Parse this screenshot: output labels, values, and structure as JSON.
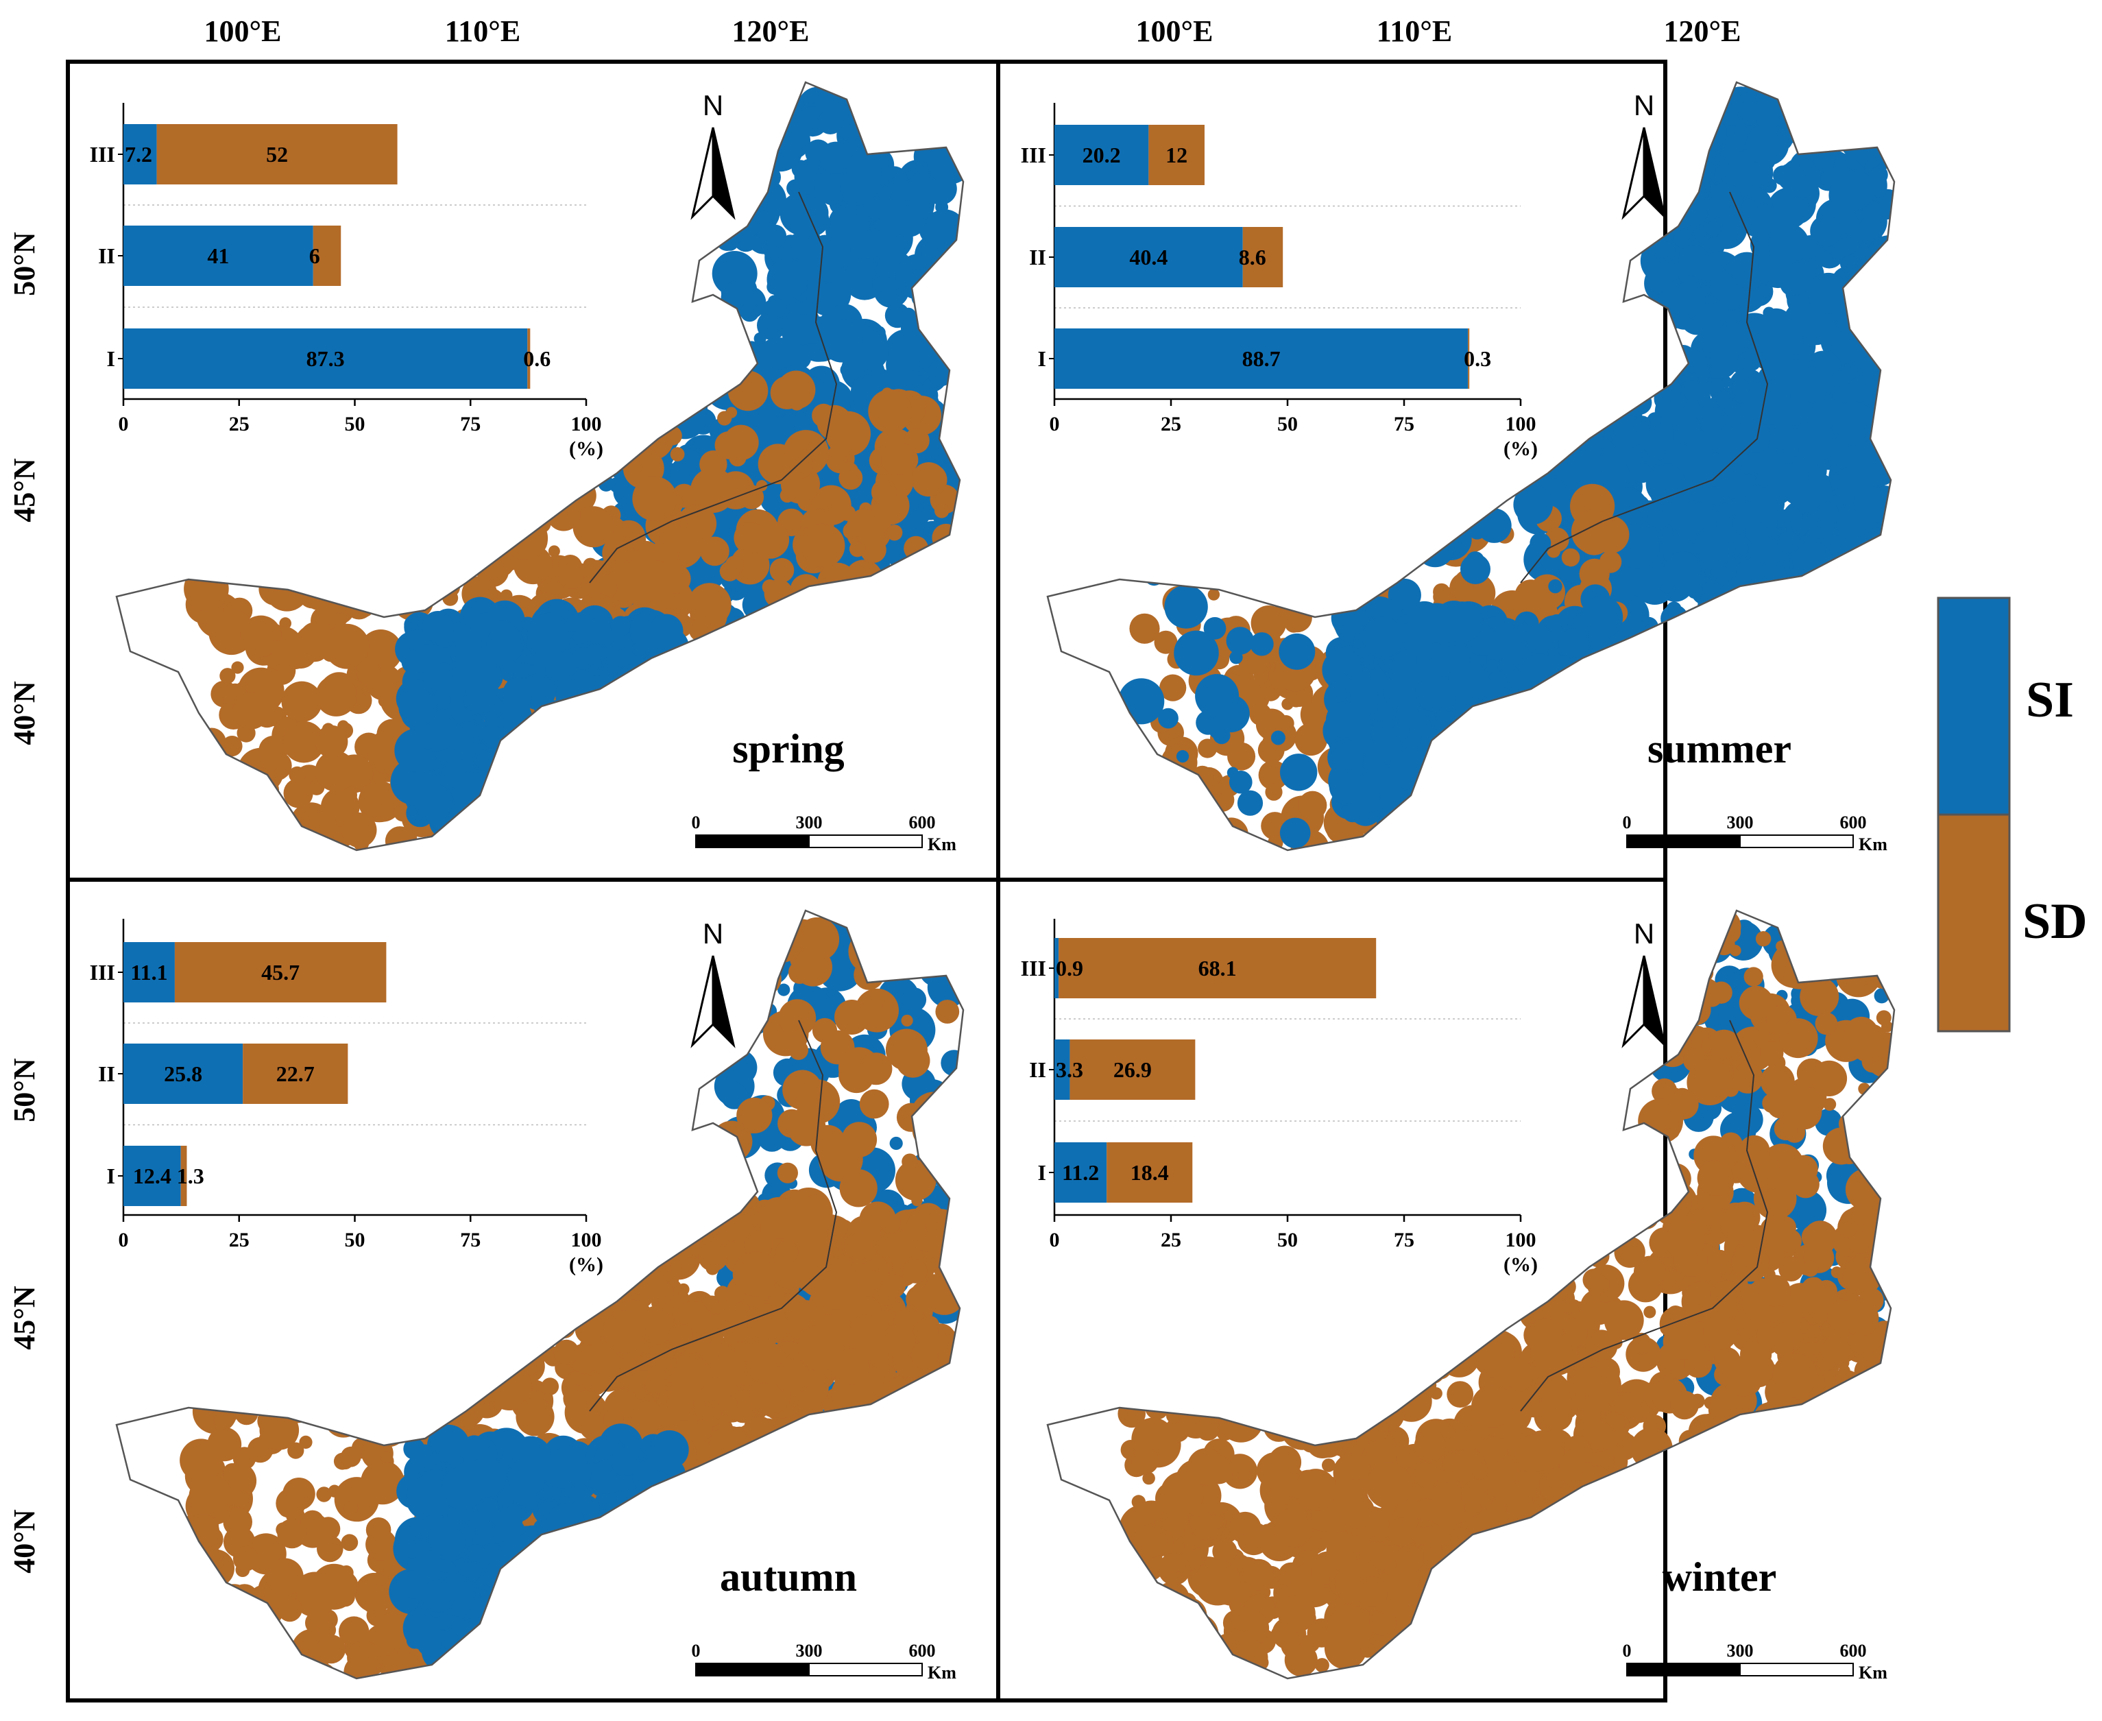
{
  "colors": {
    "SI": "#0f6fb3",
    "SD": "#b36b28",
    "boundary": "#555555",
    "frame": "#000000",
    "grid": "#bbbbbb"
  },
  "longitude_labels": [
    "100°E",
    "110°E",
    "120°E"
  ],
  "latitude_labels": [
    "50°N",
    "45°N",
    "40°N"
  ],
  "legend": {
    "placement": "right",
    "items": [
      {
        "key": "SI",
        "label": "SI",
        "color": "#0f6fb3"
      },
      {
        "key": "SD",
        "label": "SD",
        "color": "#b36b28"
      }
    ]
  },
  "panels": [
    {
      "key": "spring",
      "label": "spring",
      "distribution": "SI dominant in north-east and south; SD in west-central belt"
    },
    {
      "key": "summer",
      "label": "summer",
      "distribution": "SI dominant across most of region; SD patches in west"
    },
    {
      "key": "autumn",
      "label": "autumn",
      "distribution": "SD dominant in central belt; SI in south-east and south"
    },
    {
      "key": "winter",
      "label": "winter",
      "distribution": "SD dominant in west and central; sparse SI in north-east"
    }
  ],
  "north_arrow": "N",
  "scale_bar": {
    "ticks": [
      "0",
      "300",
      "600"
    ],
    "unit": "Km"
  },
  "chart_data": [
    {
      "type": "bar",
      "panel": "spring",
      "stacked": true,
      "orientation": "horizontal",
      "categories": [
        "III",
        "II",
        "I"
      ],
      "series": [
        {
          "name": "SI",
          "values": [
            7.2,
            41,
            87.3
          ]
        },
        {
          "name": "SD",
          "values": [
            52,
            6,
            0.6
          ]
        }
      ],
      "xlim": [
        0,
        100
      ],
      "xticks": [
        "0",
        "25",
        "50",
        "75",
        "100"
      ],
      "xunit": "(%)"
    },
    {
      "type": "bar",
      "panel": "summer",
      "stacked": true,
      "orientation": "horizontal",
      "categories": [
        "III",
        "II",
        "I"
      ],
      "series": [
        {
          "name": "SI",
          "values": [
            20.2,
            40.4,
            88.7
          ]
        },
        {
          "name": "SD",
          "values": [
            12,
            8.6,
            0.3
          ]
        }
      ],
      "xlim": [
        0,
        100
      ],
      "xticks": [
        "0",
        "25",
        "50",
        "75",
        "100"
      ],
      "xunit": "(%)"
    },
    {
      "type": "bar",
      "panel": "autumn",
      "stacked": true,
      "orientation": "horizontal",
      "categories": [
        "III",
        "II",
        "I"
      ],
      "series": [
        {
          "name": "SI",
          "values": [
            11.1,
            25.8,
            12.4
          ]
        },
        {
          "name": "SD",
          "values": [
            45.7,
            22.7,
            1.3
          ]
        }
      ],
      "xlim": [
        0,
        100
      ],
      "xticks": [
        "0",
        "25",
        "50",
        "75",
        "100"
      ],
      "xunit": "(%)"
    },
    {
      "type": "bar",
      "panel": "winter",
      "stacked": true,
      "orientation": "horizontal",
      "categories": [
        "III",
        "II",
        "I"
      ],
      "series": [
        {
          "name": "SI",
          "values": [
            0.9,
            3.3,
            11.2
          ]
        },
        {
          "name": "SD",
          "values": [
            68.1,
            26.9,
            18.4
          ]
        }
      ],
      "xlim": [
        0,
        100
      ],
      "xticks": [
        "0",
        "25",
        "50",
        "75",
        "100"
      ],
      "xunit": "(%)"
    }
  ]
}
